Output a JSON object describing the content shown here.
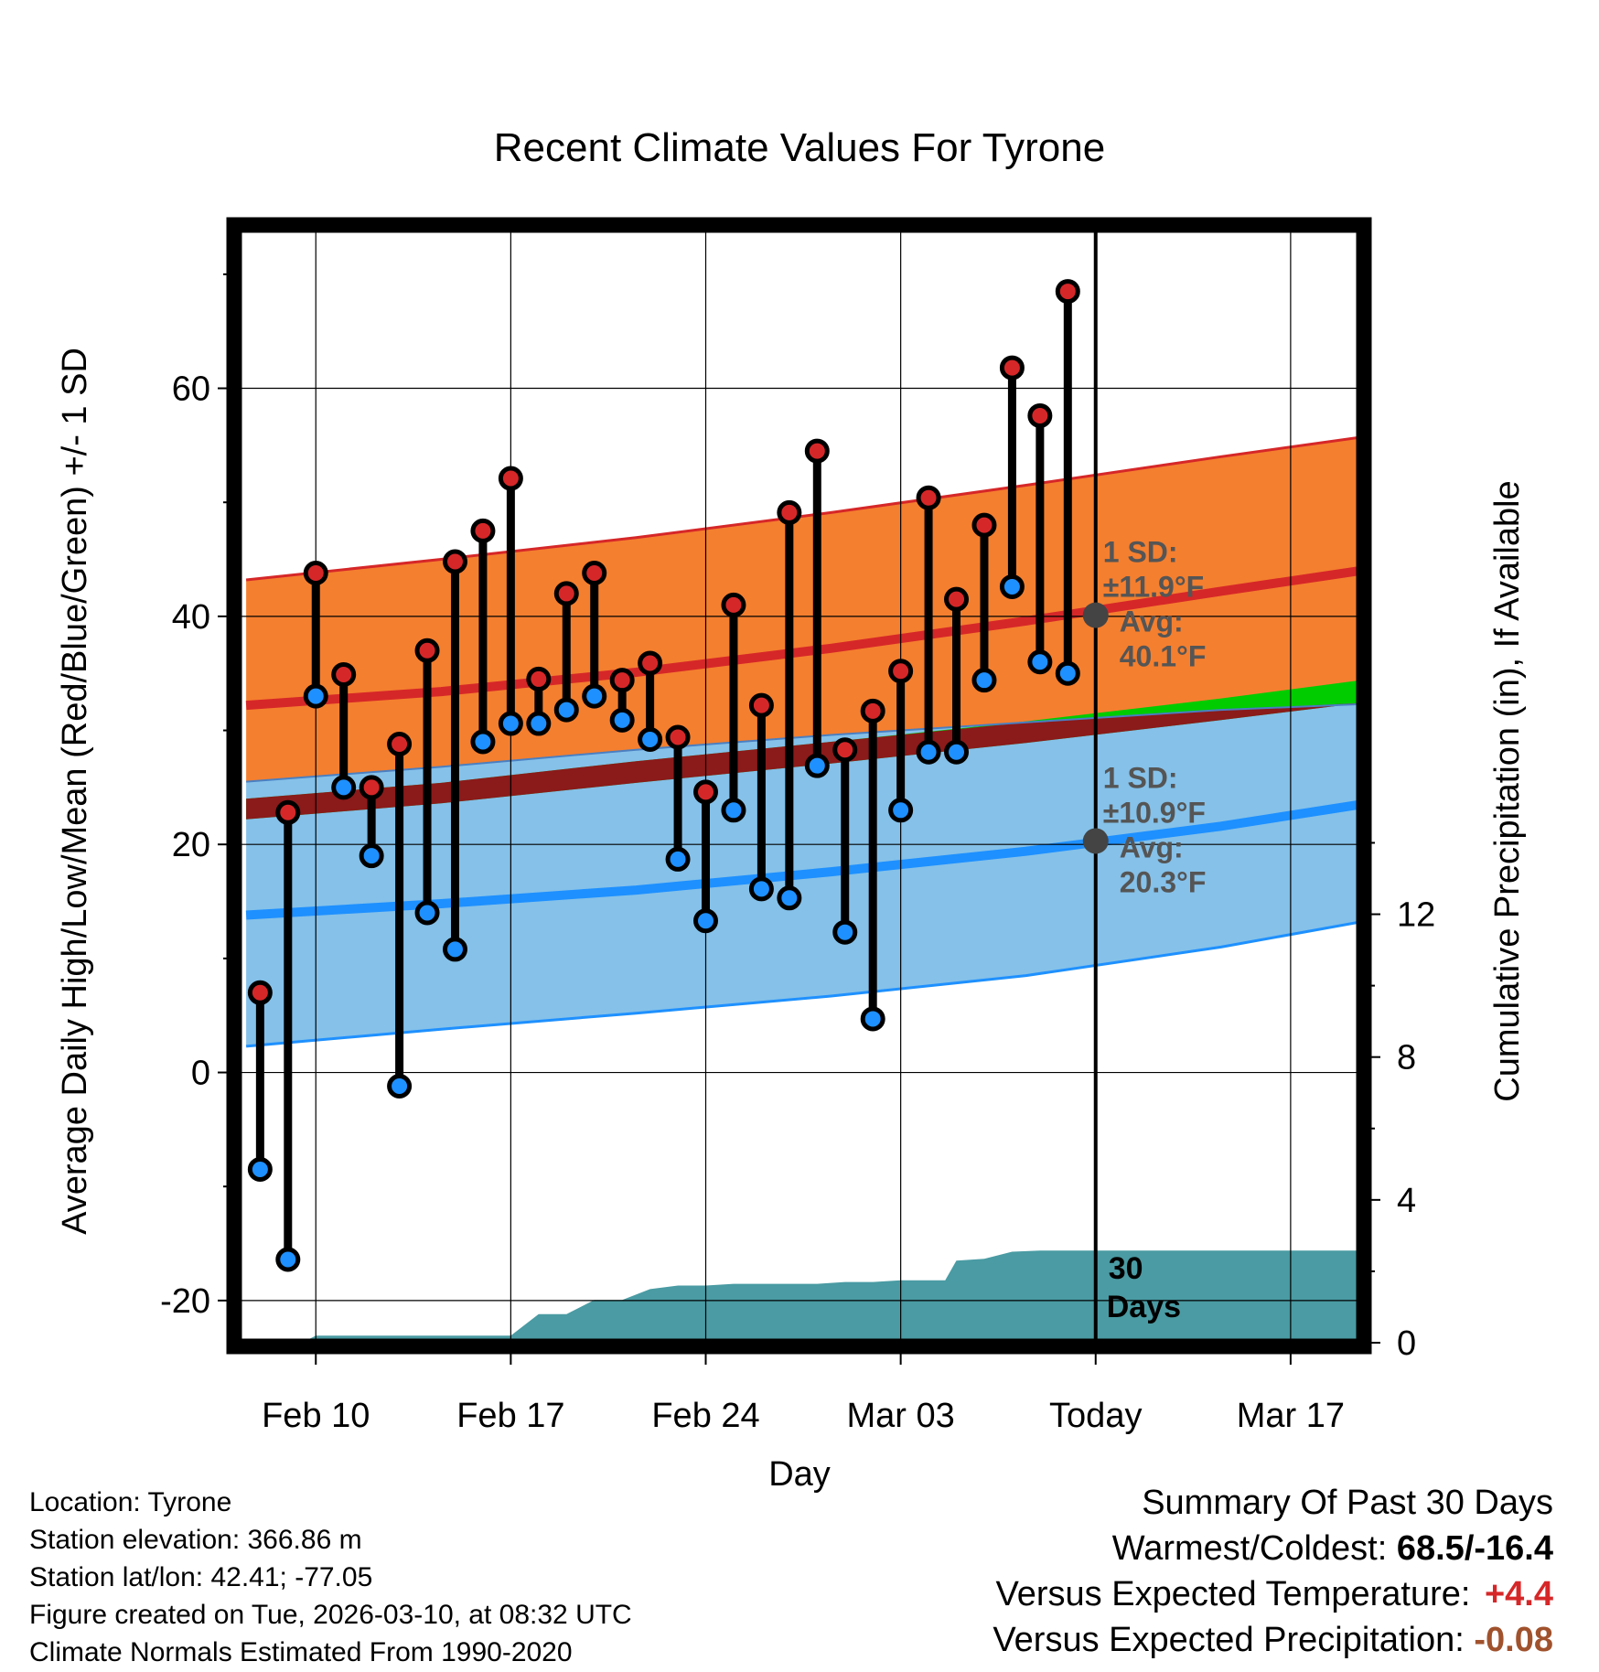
{
  "chart_data": {
    "type": "line",
    "title": "Recent Climate Values For Tyrone",
    "xlabel": "Day",
    "ylabel_left": "Average Daily High/Low/Mean (Red/Blue/Green) +/- 1 SD",
    "ylabel_right": "Cumulative Precipitation (in), If Available",
    "x_range": [
      -13.8,
      26.5
    ],
    "ylim_left": [
      -23.7,
      74
    ],
    "ylim_right": [
      0,
      31.2
    ],
    "x_ticks": [
      {
        "x": -11,
        "label": "Feb 10"
      },
      {
        "x": -4,
        "label": "Feb 17"
      },
      {
        "x": 3,
        "label": "Feb 24"
      },
      {
        "x": 10,
        "label": "Mar 03"
      },
      {
        "x": 17,
        "label": "Today"
      },
      {
        "x": 24,
        "label": "Mar 17"
      }
    ],
    "y_ticks_left": [
      -20,
      0,
      20,
      40,
      60
    ],
    "y_tick_labels_left": [
      "-20",
      "0",
      "20",
      "40",
      "60"
    ],
    "y_ticks_right": [
      0,
      4,
      8,
      12
    ],
    "y_tick_labels_right": [
      "0",
      "4",
      "8",
      "12"
    ],
    "today_x": 17,
    "normals": {
      "x": [
        -13.5,
        -6.5,
        0.5,
        7.5,
        14.5,
        21.5,
        26.5
      ],
      "high_mean": [
        32.2,
        33.4,
        35.1,
        37.2,
        39.6,
        42.2,
        44.0
      ],
      "high_sd_upper": [
        43.2,
        45.0,
        46.9,
        49.1,
        51.5,
        54.0,
        55.7
      ],
      "high_sd_lower": [
        25.5,
        26.8,
        28.3,
        29.6,
        30.7,
        31.8,
        32.3
      ],
      "low_mean": [
        13.8,
        14.8,
        16.0,
        17.6,
        19.4,
        21.6,
        23.5
      ],
      "low_sd_upper": [
        25.5,
        26.8,
        28.3,
        29.6,
        30.7,
        31.8,
        32.3
      ],
      "low_sd_lower": [
        2.3,
        3.8,
        5.2,
        6.7,
        8.5,
        11.0,
        13.2
      ],
      "mean_upper": [
        24.0,
        25.4,
        27.3,
        29.0,
        30.8,
        32.8,
        34.4
      ],
      "mean_lower": [
        22.2,
        23.6,
        25.4,
        27.1,
        28.9,
        30.9,
        32.4
      ]
    },
    "days": [
      {
        "x": -13,
        "high": 7.0,
        "low": -8.5
      },
      {
        "x": -12,
        "high": 22.8,
        "low": -16.4
      },
      {
        "x": -11,
        "high": 43.8,
        "low": 33.0
      },
      {
        "x": -10,
        "high": 34.9,
        "low": 25.0
      },
      {
        "x": -9,
        "high": 25.0,
        "low": 19.0
      },
      {
        "x": -8,
        "high": 28.8,
        "low": -1.2
      },
      {
        "x": -7,
        "high": 37.0,
        "low": 14.0
      },
      {
        "x": -6,
        "high": 44.8,
        "low": 10.8
      },
      {
        "x": -5,
        "high": 47.5,
        "low": 29.0
      },
      {
        "x": -4,
        "high": 52.1,
        "low": 30.6
      },
      {
        "x": -3,
        "high": 34.5,
        "low": 30.6
      },
      {
        "x": -2,
        "high": 42.0,
        "low": 31.8
      },
      {
        "x": -1,
        "high": 43.8,
        "low": 33.0
      },
      {
        "x": 0,
        "high": 34.4,
        "low": 30.9
      },
      {
        "x": 1,
        "high": 35.9,
        "low": 29.2
      },
      {
        "x": 2,
        "high": 29.4,
        "low": 18.7
      },
      {
        "x": 3,
        "high": 24.6,
        "low": 13.3
      },
      {
        "x": 4,
        "high": 41.0,
        "low": 23.0
      },
      {
        "x": 5,
        "high": 32.2,
        "low": 16.1
      },
      {
        "x": 6,
        "high": 49.1,
        "low": 15.3
      },
      {
        "x": 7,
        "high": 54.5,
        "low": 26.9
      },
      {
        "x": 8,
        "high": 28.3,
        "low": 12.3
      },
      {
        "x": 9,
        "high": 31.7,
        "low": 4.7
      },
      {
        "x": 10,
        "high": 35.2,
        "low": 23.0
      },
      {
        "x": 11,
        "high": 50.4,
        "low": 28.1
      },
      {
        "x": 12,
        "high": 41.5,
        "low": 28.1
      },
      {
        "x": 13,
        "high": 48.0,
        "low": 34.4
      },
      {
        "x": 14,
        "high": 61.8,
        "low": 42.6
      },
      {
        "x": 15,
        "high": 57.6,
        "low": 36.0
      },
      {
        "x": 16,
        "high": 68.5,
        "low": 35.0
      }
    ],
    "precip": {
      "x": [
        -13.5,
        -11.5,
        -11,
        -4,
        -3,
        -2,
        -1,
        0,
        1,
        2,
        3,
        4,
        5,
        6,
        7,
        8,
        9,
        10,
        11,
        11.6,
        12,
        13,
        14,
        15,
        16,
        17,
        26.5
      ],
      "cum": [
        0,
        0,
        0.2,
        0.2,
        0.8,
        0.8,
        1.2,
        1.2,
        1.5,
        1.6,
        1.6,
        1.65,
        1.65,
        1.65,
        1.65,
        1.7,
        1.7,
        1.75,
        1.75,
        1.75,
        2.3,
        2.35,
        2.55,
        2.58,
        2.58,
        2.58,
        2.58
      ]
    },
    "annotations": {
      "high": {
        "sd_label": "1 SD:",
        "sd_value": "±11.9°F",
        "avg_label": "Avg:",
        "avg_value": "40.1°F",
        "avg": 40.1
      },
      "low": {
        "sd_label": "1 SD:",
        "sd_value": "±10.9°F",
        "avg_label": "Avg:",
        "avg_value": "20.3°F",
        "avg": 20.3
      }
    },
    "days_label_1": "30",
    "days_label_2": "Days",
    "colors": {
      "high_band": "#f47f2f",
      "high_line": "#d62728",
      "low_band": "#85c1e9",
      "low_line": "#1e90ff",
      "mean_band": "#00cc00",
      "mean_overlap": "#8b1a1a",
      "precip": "#4a9ba3",
      "high_dot": "#d62728",
      "low_dot": "#1e90ff",
      "today_dot": "#444444"
    }
  },
  "info": {
    "location": "Location: Tyrone",
    "elevation": "Station elevation: 366.86 m",
    "latlon": "Station lat/lon: 42.41; -77.05",
    "created": "Figure created on Tue, 2026-03-10, at 08:32 UTC",
    "normals": "Climate Normals Estimated From 1990-2020"
  },
  "summary": {
    "title": "Summary Of Past 30 Days",
    "warm_cold_label": "Warmest/Coldest:",
    "warm_cold_value": "68.5/-16.4",
    "temp_label": "Versus Expected Temperature:",
    "temp_value": "+4.4",
    "precip_label": "Versus Expected Precipitation:",
    "precip_value": "-0.08"
  }
}
